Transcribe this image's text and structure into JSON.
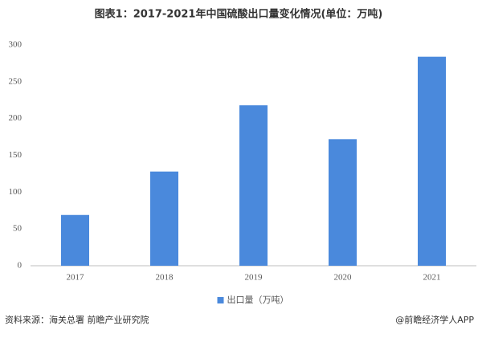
{
  "chart_data": {
    "type": "bar",
    "title": "图表1：2017-2021年中国硫酸出口量变化情况(单位：万吨)",
    "categories": [
      "2017",
      "2018",
      "2019",
      "2020",
      "2021"
    ],
    "series": [
      {
        "name": "出口量（万吨）",
        "color": "#4a89dc",
        "values": [
          69,
          128,
          218,
          172,
          284
        ]
      }
    ],
    "ylim": [
      0,
      300
    ],
    "yticks": [
      0,
      50,
      100,
      150,
      200,
      250,
      300
    ],
    "grid": false,
    "legend": "bottom",
    "source": "资料来源：海关总署 前瞻产业研究院",
    "credit": "@前瞻经济学人APP"
  }
}
